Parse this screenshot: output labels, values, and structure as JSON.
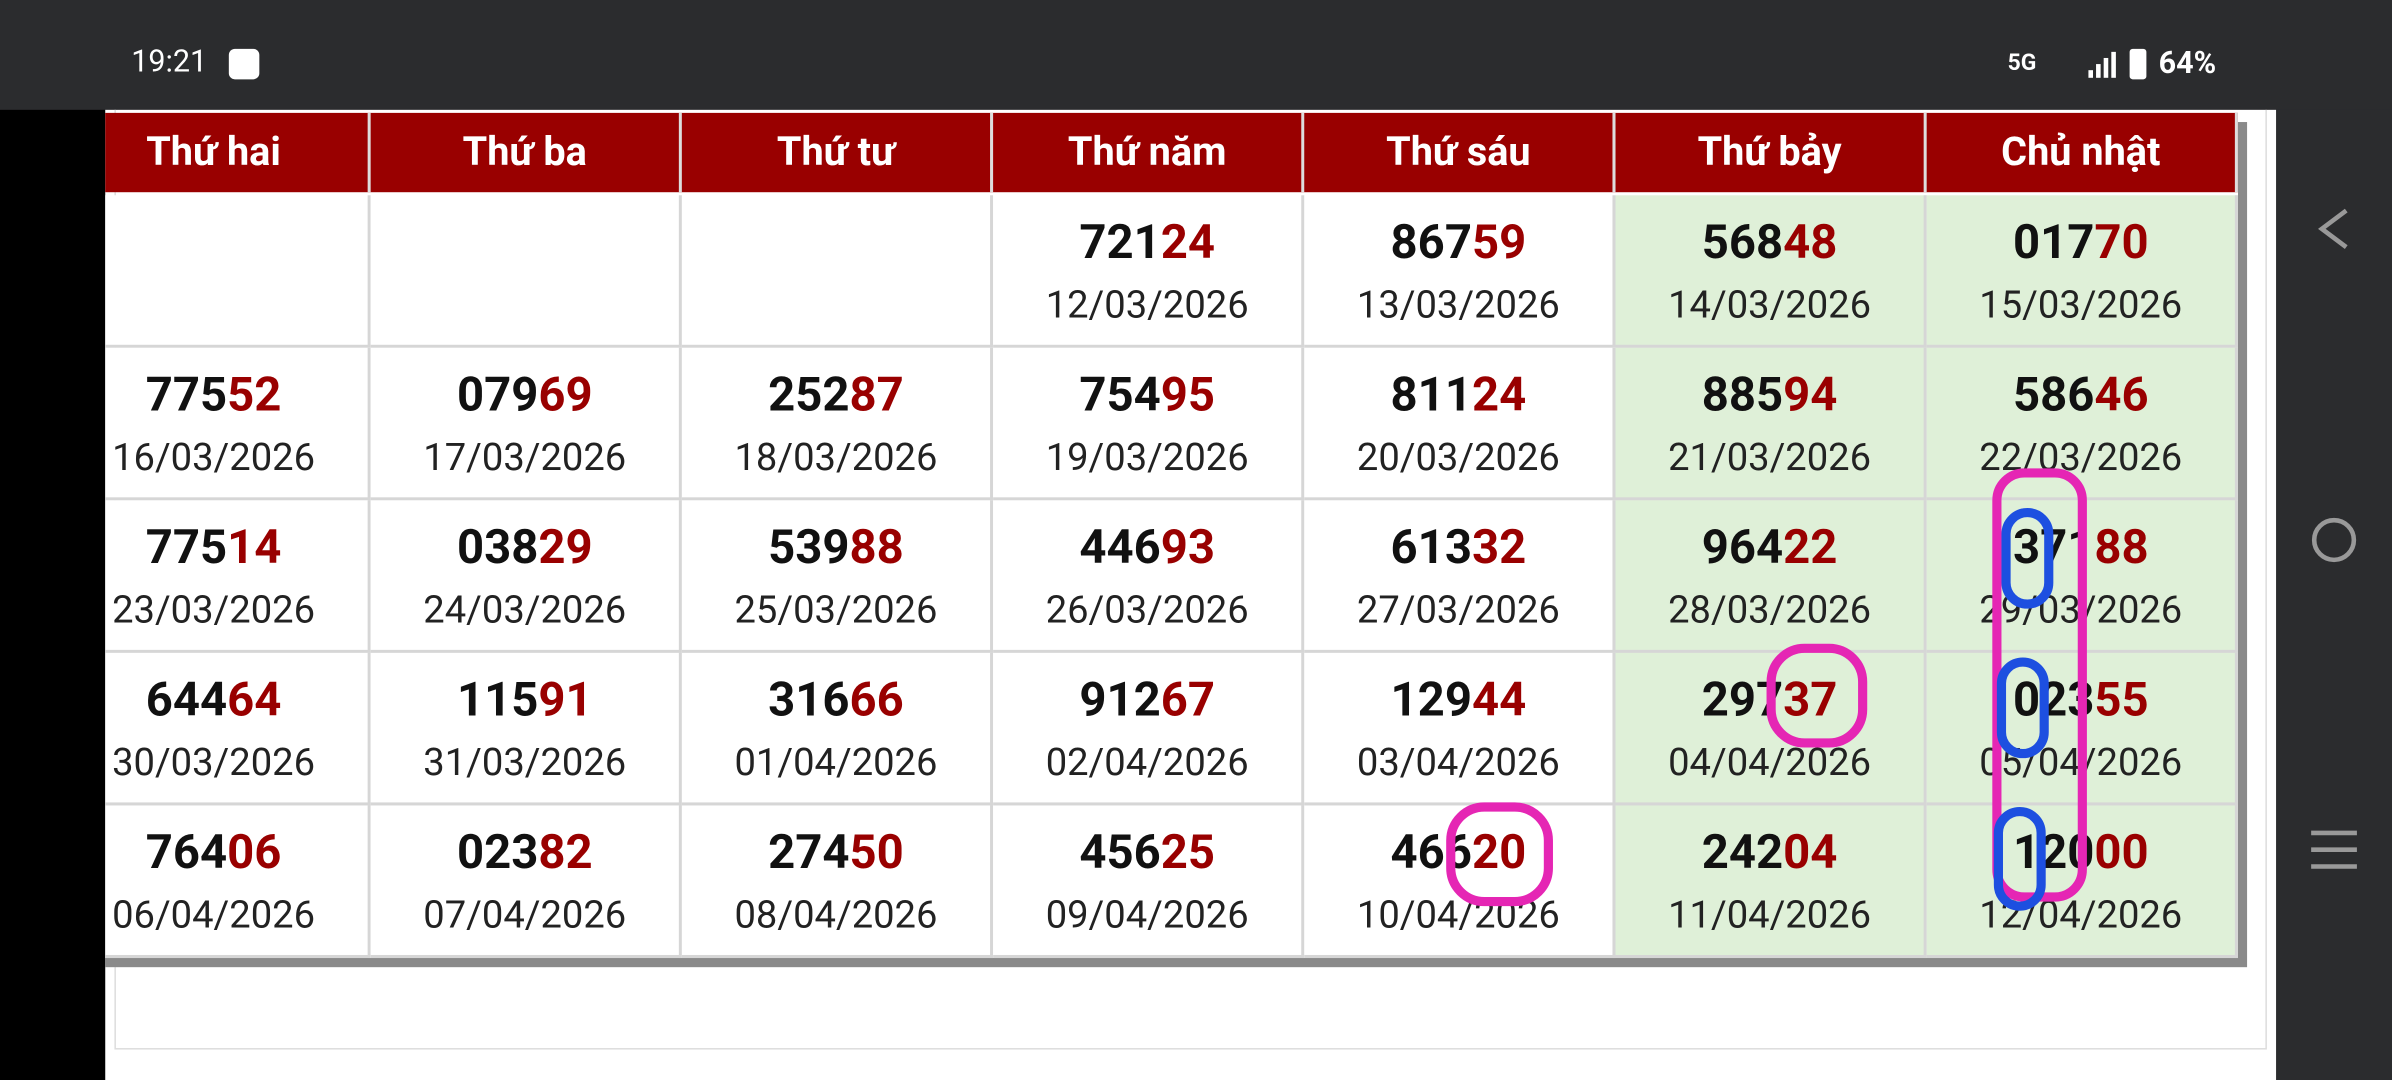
{
  "status": {
    "time": "19:21",
    "network": "5G",
    "battery": "64%"
  },
  "table": {
    "columns": [
      "Thứ hai",
      "Thứ ba",
      "Thứ tư",
      "Thứ năm",
      "Thứ sáu",
      "Thứ bảy",
      "Chủ nhật"
    ],
    "rows": [
      [
        null,
        null,
        null,
        {
          "main": "721",
          "last": "24",
          "date": "12/03/2026"
        },
        {
          "main": "867",
          "last": "59",
          "date": "13/03/2026"
        },
        {
          "main": "568",
          "last": "48",
          "date": "14/03/2026"
        },
        {
          "main": "017",
          "last": "70",
          "date": "15/03/2026"
        }
      ],
      [
        {
          "main": "775",
          "last": "52",
          "date": "16/03/2026"
        },
        {
          "main": "079",
          "last": "69",
          "date": "17/03/2026"
        },
        {
          "main": "252",
          "last": "87",
          "date": "18/03/2026"
        },
        {
          "main": "754",
          "last": "95",
          "date": "19/03/2026"
        },
        {
          "main": "811",
          "last": "24",
          "date": "20/03/2026"
        },
        {
          "main": "885",
          "last": "94",
          "date": "21/03/2026"
        },
        {
          "main": "586",
          "last": "46",
          "date": "22/03/2026"
        }
      ],
      [
        {
          "main": "775",
          "last": "14",
          "date": "23/03/2026"
        },
        {
          "main": "038",
          "last": "29",
          "date": "24/03/2026"
        },
        {
          "main": "539",
          "last": "88",
          "date": "25/03/2026"
        },
        {
          "main": "446",
          "last": "93",
          "date": "26/03/2026"
        },
        {
          "main": "613",
          "last": "32",
          "date": "27/03/2026"
        },
        {
          "main": "964",
          "last": "22",
          "date": "28/03/2026"
        },
        {
          "main": "371",
          "last": "88",
          "date": "29/03/2026"
        }
      ],
      [
        {
          "main": "644",
          "last": "64",
          "date": "30/03/2026"
        },
        {
          "main": "115",
          "last": "91",
          "date": "31/03/2026"
        },
        {
          "main": "316",
          "last": "66",
          "date": "01/04/2026"
        },
        {
          "main": "912",
          "last": "67",
          "date": "02/04/2026"
        },
        {
          "main": "129",
          "last": "44",
          "date": "03/04/2026"
        },
        {
          "main": "297",
          "last": "37",
          "date": "04/04/2026"
        },
        {
          "main": "023",
          "last": "55",
          "date": "05/04/2026"
        }
      ],
      [
        {
          "main": "764",
          "last": "06",
          "date": "06/04/2026"
        },
        {
          "main": "023",
          "last": "82",
          "date": "07/04/2026"
        },
        {
          "main": "274",
          "last": "50",
          "date": "08/04/2026"
        },
        {
          "main": "456",
          "last": "25",
          "date": "09/04/2026"
        },
        {
          "main": "466",
          "last": "20",
          "date": "10/04/2026"
        },
        {
          "main": "242",
          "last": "04",
          "date": "11/04/2026"
        },
        {
          "main": "120",
          "last": "00",
          "date": "12/04/2026"
        }
      ]
    ]
  }
}
